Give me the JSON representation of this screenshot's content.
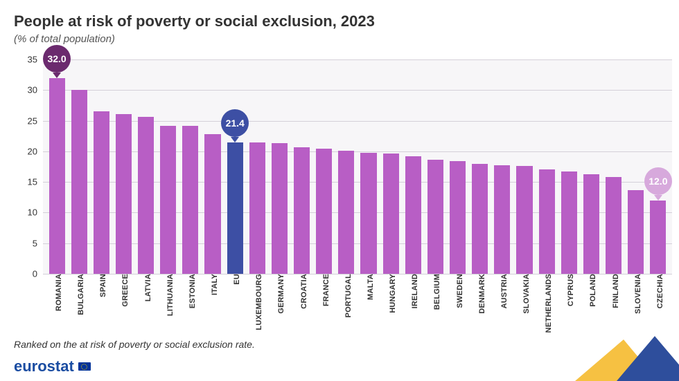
{
  "header": {
    "title": "People at risk of poverty or social exclusion, 2023",
    "title_fontsize": 22,
    "title_color": "#333333",
    "subtitle": "(% of total population)",
    "subtitle_fontsize": 15,
    "subtitle_color": "#555555"
  },
  "footer": {
    "rank_note": "Ranked on the at risk of poverty or social exclusion rate.",
    "rank_note_fontsize": 14,
    "brand": "eurostat",
    "brand_color": "#1b4da2",
    "brand_fontsize": 22,
    "corner_colors": {
      "yellow": "#f6c142",
      "blue": "#2e4e9c"
    }
  },
  "chart": {
    "type": "bar",
    "background": "#f7f6f8",
    "grid_color": "#d4d0d9",
    "axis_color": "#333333",
    "y": {
      "min": 0,
      "max": 35,
      "step": 5,
      "tick_fontsize": 13
    },
    "bar_label_fontsize": 11,
    "bar_label_fontweight": "600",
    "default_bar_color": "#b85ec5",
    "highlight_bar_color": "#3d4fa4",
    "data": [
      {
        "label": "Romania",
        "value": 32.0
      },
      {
        "label": "Bulgaria",
        "value": 30.0
      },
      {
        "label": "Spain",
        "value": 26.5
      },
      {
        "label": "Greece",
        "value": 26.1
      },
      {
        "label": "Latvia",
        "value": 25.6
      },
      {
        "label": "Lithuania",
        "value": 24.2
      },
      {
        "label": "Estonia",
        "value": 24.2
      },
      {
        "label": "Italy",
        "value": 22.8
      },
      {
        "label": "EU",
        "value": 21.4,
        "highlight": true
      },
      {
        "label": "Luxembourg",
        "value": 21.4
      },
      {
        "label": "Germany",
        "value": 21.3
      },
      {
        "label": "Croatia",
        "value": 20.7
      },
      {
        "label": "France",
        "value": 20.4
      },
      {
        "label": "Portugal",
        "value": 20.1
      },
      {
        "label": "Malta",
        "value": 19.8
      },
      {
        "label": "Hungary",
        "value": 19.7
      },
      {
        "label": "Ireland",
        "value": 19.2
      },
      {
        "label": "Belgium",
        "value": 18.6
      },
      {
        "label": "Sweden",
        "value": 18.4
      },
      {
        "label": "Denmark",
        "value": 17.9
      },
      {
        "label": "Austria",
        "value": 17.7
      },
      {
        "label": "Slovakia",
        "value": 17.6
      },
      {
        "label": "Netherlands",
        "value": 17.0
      },
      {
        "label": "Cyprus",
        "value": 16.7
      },
      {
        "label": "Poland",
        "value": 16.3
      },
      {
        "label": "Finland",
        "value": 15.8
      },
      {
        "label": "Slovenia",
        "value": 13.7
      },
      {
        "label": "Czechia",
        "value": 12.0
      }
    ],
    "callouts": [
      {
        "target_index": 0,
        "text": "32.0",
        "bg": "#6b2a6e",
        "fontsize": 14,
        "diameter": 40
      },
      {
        "target_index": 8,
        "text": "21.4",
        "bg": "#3d4fa4",
        "fontsize": 14,
        "diameter": 40
      },
      {
        "target_index": 27,
        "text": "12.0",
        "bg": "#d7a9dc",
        "fontsize": 14,
        "diameter": 40
      }
    ]
  }
}
